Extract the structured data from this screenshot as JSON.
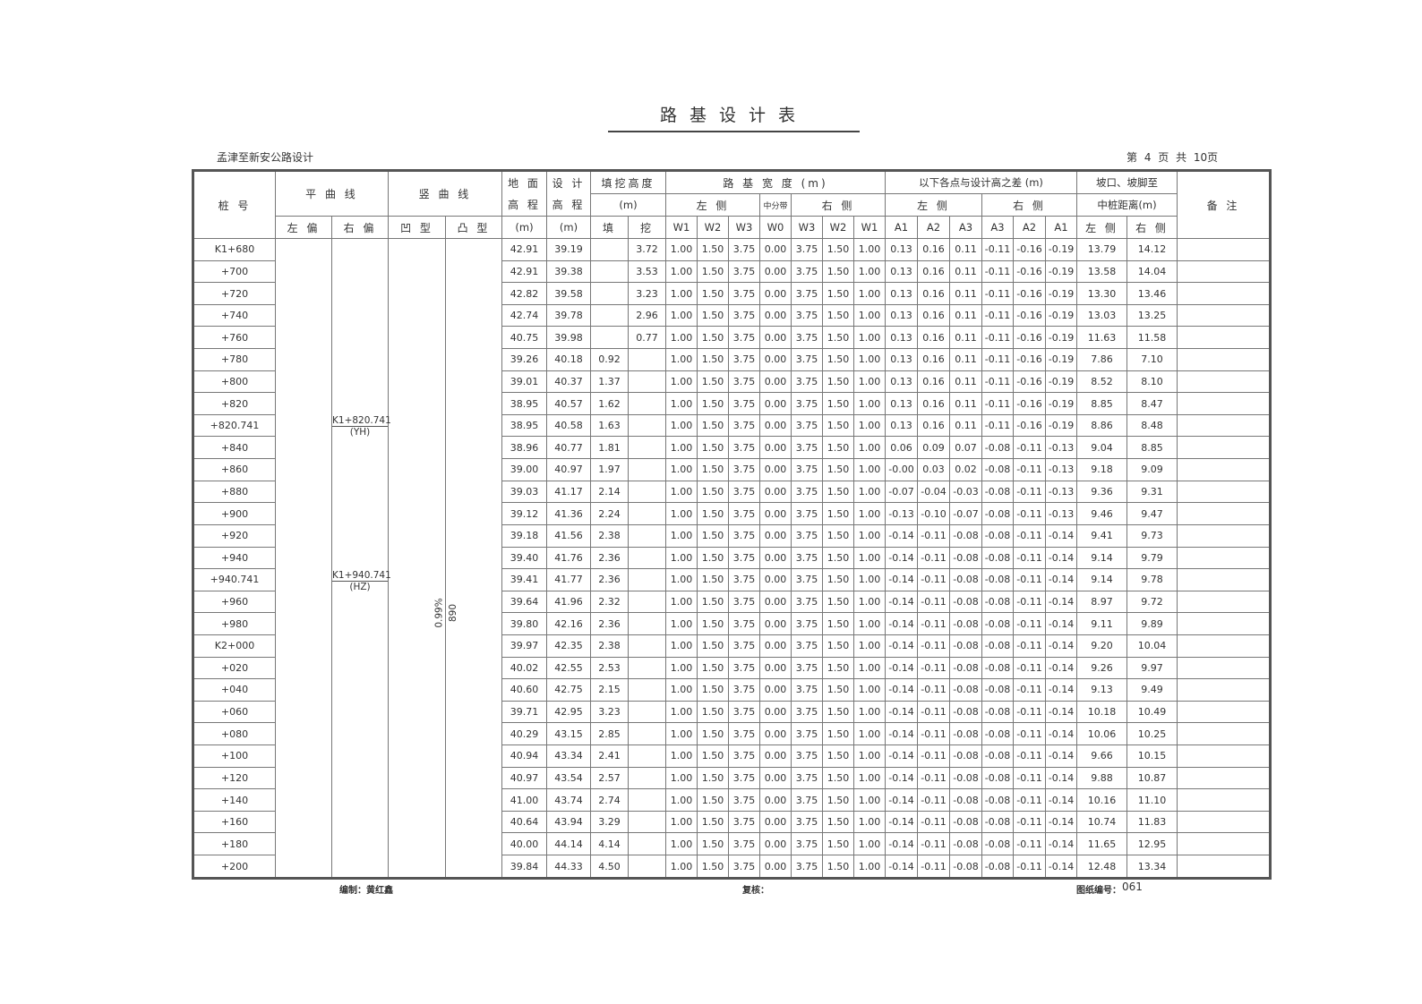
{
  "title": "路基设计表",
  "project": "孟津至新安公路设计",
  "page_info": "第 4 页   共 10页",
  "header": {
    "station": "桩 号",
    "horizontal_curve": "平 曲 线",
    "vertical_curve": "竖 曲 线",
    "ground_elev": "地 面 高 程",
    "design_elev": "设 计 高 程",
    "fill_cut": "填挖高度",
    "unit_m": "(m)",
    "width": "路 基 宽 度 (m)",
    "elev_diff": "以下各点与设计高之差 (m)",
    "slope_dist_1": "坡口、坡脚至",
    "slope_dist_2": "中桩距离(m)",
    "remark": "备 注",
    "left_side": "左 侧",
    "right_side": "右 侧",
    "median": "中分带",
    "left_offset": "左 偏",
    "right_offset": "右 偏",
    "concave": "凹 型",
    "convex": "凸 型",
    "fill": "填",
    "cut": "挖",
    "width_cols": [
      "W1",
      "W2",
      "W3",
      "W0",
      "W3",
      "W2",
      "W1"
    ],
    "diff_cols": [
      "A1",
      "A2",
      "A3",
      "A3",
      "A2",
      "A1"
    ]
  },
  "curve_annotations": {
    "right_offset": [
      {
        "station": "K1+820.741",
        "point": "(YH)"
      },
      {
        "station": "K1+940.741",
        "point": "(HZ)"
      }
    ],
    "concave_grade": "0.99%",
    "convex_radius": "890"
  },
  "rows": [
    [
      "K1+680",
      "42.91",
      "39.19",
      "",
      "3.72",
      "1.00",
      "1.50",
      "3.75",
      "0.00",
      "3.75",
      "1.50",
      "1.00",
      "0.13",
      "0.16",
      "0.11",
      "-0.11",
      "-0.16",
      "-0.19",
      "13.79",
      "14.12"
    ],
    [
      "+700",
      "42.91",
      "39.38",
      "",
      "3.53",
      "1.00",
      "1.50",
      "3.75",
      "0.00",
      "3.75",
      "1.50",
      "1.00",
      "0.13",
      "0.16",
      "0.11",
      "-0.11",
      "-0.16",
      "-0.19",
      "13.58",
      "14.04"
    ],
    [
      "+720",
      "42.82",
      "39.58",
      "",
      "3.23",
      "1.00",
      "1.50",
      "3.75",
      "0.00",
      "3.75",
      "1.50",
      "1.00",
      "0.13",
      "0.16",
      "0.11",
      "-0.11",
      "-0.16",
      "-0.19",
      "13.30",
      "13.46"
    ],
    [
      "+740",
      "42.74",
      "39.78",
      "",
      "2.96",
      "1.00",
      "1.50",
      "3.75",
      "0.00",
      "3.75",
      "1.50",
      "1.00",
      "0.13",
      "0.16",
      "0.11",
      "-0.11",
      "-0.16",
      "-0.19",
      "13.03",
      "13.25"
    ],
    [
      "+760",
      "40.75",
      "39.98",
      "",
      "0.77",
      "1.00",
      "1.50",
      "3.75",
      "0.00",
      "3.75",
      "1.50",
      "1.00",
      "0.13",
      "0.16",
      "0.11",
      "-0.11",
      "-0.16",
      "-0.19",
      "11.63",
      "11.58"
    ],
    [
      "+780",
      "39.26",
      "40.18",
      "0.92",
      "",
      "1.00",
      "1.50",
      "3.75",
      "0.00",
      "3.75",
      "1.50",
      "1.00",
      "0.13",
      "0.16",
      "0.11",
      "-0.11",
      "-0.16",
      "-0.19",
      "7.86",
      "7.10"
    ],
    [
      "+800",
      "39.01",
      "40.37",
      "1.37",
      "",
      "1.00",
      "1.50",
      "3.75",
      "0.00",
      "3.75",
      "1.50",
      "1.00",
      "0.13",
      "0.16",
      "0.11",
      "-0.11",
      "-0.16",
      "-0.19",
      "8.52",
      "8.10"
    ],
    [
      "+820",
      "38.95",
      "40.57",
      "1.62",
      "",
      "1.00",
      "1.50",
      "3.75",
      "0.00",
      "3.75",
      "1.50",
      "1.00",
      "0.13",
      "0.16",
      "0.11",
      "-0.11",
      "-0.16",
      "-0.19",
      "8.85",
      "8.47"
    ],
    [
      "+820.741",
      "38.95",
      "40.58",
      "1.63",
      "",
      "1.00",
      "1.50",
      "3.75",
      "0.00",
      "3.75",
      "1.50",
      "1.00",
      "0.13",
      "0.16",
      "0.11",
      "-0.11",
      "-0.16",
      "-0.19",
      "8.86",
      "8.48"
    ],
    [
      "+840",
      "38.96",
      "40.77",
      "1.81",
      "",
      "1.00",
      "1.50",
      "3.75",
      "0.00",
      "3.75",
      "1.50",
      "1.00",
      "0.06",
      "0.09",
      "0.07",
      "-0.08",
      "-0.11",
      "-0.13",
      "9.04",
      "8.85"
    ],
    [
      "+860",
      "39.00",
      "40.97",
      "1.97",
      "",
      "1.00",
      "1.50",
      "3.75",
      "0.00",
      "3.75",
      "1.50",
      "1.00",
      "-0.00",
      "0.03",
      "0.02",
      "-0.08",
      "-0.11",
      "-0.13",
      "9.18",
      "9.09"
    ],
    [
      "+880",
      "39.03",
      "41.17",
      "2.14",
      "",
      "1.00",
      "1.50",
      "3.75",
      "0.00",
      "3.75",
      "1.50",
      "1.00",
      "-0.07",
      "-0.04",
      "-0.03",
      "-0.08",
      "-0.11",
      "-0.13",
      "9.36",
      "9.31"
    ],
    [
      "+900",
      "39.12",
      "41.36",
      "2.24",
      "",
      "1.00",
      "1.50",
      "3.75",
      "0.00",
      "3.75",
      "1.50",
      "1.00",
      "-0.13",
      "-0.10",
      "-0.07",
      "-0.08",
      "-0.11",
      "-0.13",
      "9.46",
      "9.47"
    ],
    [
      "+920",
      "39.18",
      "41.56",
      "2.38",
      "",
      "1.00",
      "1.50",
      "3.75",
      "0.00",
      "3.75",
      "1.50",
      "1.00",
      "-0.14",
      "-0.11",
      "-0.08",
      "-0.08",
      "-0.11",
      "-0.14",
      "9.41",
      "9.73"
    ],
    [
      "+940",
      "39.40",
      "41.76",
      "2.36",
      "",
      "1.00",
      "1.50",
      "3.75",
      "0.00",
      "3.75",
      "1.50",
      "1.00",
      "-0.14",
      "-0.11",
      "-0.08",
      "-0.08",
      "-0.11",
      "-0.14",
      "9.14",
      "9.79"
    ],
    [
      "+940.741",
      "39.41",
      "41.77",
      "2.36",
      "",
      "1.00",
      "1.50",
      "3.75",
      "0.00",
      "3.75",
      "1.50",
      "1.00",
      "-0.14",
      "-0.11",
      "-0.08",
      "-0.08",
      "-0.11",
      "-0.14",
      "9.14",
      "9.78"
    ],
    [
      "+960",
      "39.64",
      "41.96",
      "2.32",
      "",
      "1.00",
      "1.50",
      "3.75",
      "0.00",
      "3.75",
      "1.50",
      "1.00",
      "-0.14",
      "-0.11",
      "-0.08",
      "-0.08",
      "-0.11",
      "-0.14",
      "8.97",
      "9.72"
    ],
    [
      "+980",
      "39.80",
      "42.16",
      "2.36",
      "",
      "1.00",
      "1.50",
      "3.75",
      "0.00",
      "3.75",
      "1.50",
      "1.00",
      "-0.14",
      "-0.11",
      "-0.08",
      "-0.08",
      "-0.11",
      "-0.14",
      "9.11",
      "9.89"
    ],
    [
      "K2+000",
      "39.97",
      "42.35",
      "2.38",
      "",
      "1.00",
      "1.50",
      "3.75",
      "0.00",
      "3.75",
      "1.50",
      "1.00",
      "-0.14",
      "-0.11",
      "-0.08",
      "-0.08",
      "-0.11",
      "-0.14",
      "9.20",
      "10.04"
    ],
    [
      "+020",
      "40.02",
      "42.55",
      "2.53",
      "",
      "1.00",
      "1.50",
      "3.75",
      "0.00",
      "3.75",
      "1.50",
      "1.00",
      "-0.14",
      "-0.11",
      "-0.08",
      "-0.08",
      "-0.11",
      "-0.14",
      "9.26",
      "9.97"
    ],
    [
      "+040",
      "40.60",
      "42.75",
      "2.15",
      "",
      "1.00",
      "1.50",
      "3.75",
      "0.00",
      "3.75",
      "1.50",
      "1.00",
      "-0.14",
      "-0.11",
      "-0.08",
      "-0.08",
      "-0.11",
      "-0.14",
      "9.13",
      "9.49"
    ],
    [
      "+060",
      "39.71",
      "42.95",
      "3.23",
      "",
      "1.00",
      "1.50",
      "3.75",
      "0.00",
      "3.75",
      "1.50",
      "1.00",
      "-0.14",
      "-0.11",
      "-0.08",
      "-0.08",
      "-0.11",
      "-0.14",
      "10.18",
      "10.49"
    ],
    [
      "+080",
      "40.29",
      "43.15",
      "2.85",
      "",
      "1.00",
      "1.50",
      "3.75",
      "0.00",
      "3.75",
      "1.50",
      "1.00",
      "-0.14",
      "-0.11",
      "-0.08",
      "-0.08",
      "-0.11",
      "-0.14",
      "10.06",
      "10.25"
    ],
    [
      "+100",
      "40.94",
      "43.34",
      "2.41",
      "",
      "1.00",
      "1.50",
      "3.75",
      "0.00",
      "3.75",
      "1.50",
      "1.00",
      "-0.14",
      "-0.11",
      "-0.08",
      "-0.08",
      "-0.11",
      "-0.14",
      "9.66",
      "10.15"
    ],
    [
      "+120",
      "40.97",
      "43.54",
      "2.57",
      "",
      "1.00",
      "1.50",
      "3.75",
      "0.00",
      "3.75",
      "1.50",
      "1.00",
      "-0.14",
      "-0.11",
      "-0.08",
      "-0.08",
      "-0.11",
      "-0.14",
      "9.88",
      "10.87"
    ],
    [
      "+140",
      "41.00",
      "43.74",
      "2.74",
      "",
      "1.00",
      "1.50",
      "3.75",
      "0.00",
      "3.75",
      "1.50",
      "1.00",
      "-0.14",
      "-0.11",
      "-0.08",
      "-0.08",
      "-0.11",
      "-0.14",
      "10.16",
      "11.10"
    ],
    [
      "+160",
      "40.64",
      "43.94",
      "3.29",
      "",
      "1.00",
      "1.50",
      "3.75",
      "0.00",
      "3.75",
      "1.50",
      "1.00",
      "-0.14",
      "-0.11",
      "-0.08",
      "-0.08",
      "-0.11",
      "-0.14",
      "10.74",
      "11.83"
    ],
    [
      "+180",
      "40.00",
      "44.14",
      "4.14",
      "",
      "1.00",
      "1.50",
      "3.75",
      "0.00",
      "3.75",
      "1.50",
      "1.00",
      "-0.14",
      "-0.11",
      "-0.08",
      "-0.08",
      "-0.11",
      "-0.14",
      "11.65",
      "12.95"
    ],
    [
      "+200",
      "39.84",
      "44.33",
      "4.50",
      "",
      "1.00",
      "1.50",
      "3.75",
      "0.00",
      "3.75",
      "1.50",
      "1.00",
      "-0.14",
      "-0.11",
      "-0.08",
      "-0.08",
      "-0.11",
      "-0.14",
      "12.48",
      "13.34"
    ]
  ],
  "footer": {
    "compiler": "编制：黄红鑫",
    "reviewer": "复核：",
    "drawing_no_label": "图纸编号：",
    "drawing_no": "061"
  }
}
